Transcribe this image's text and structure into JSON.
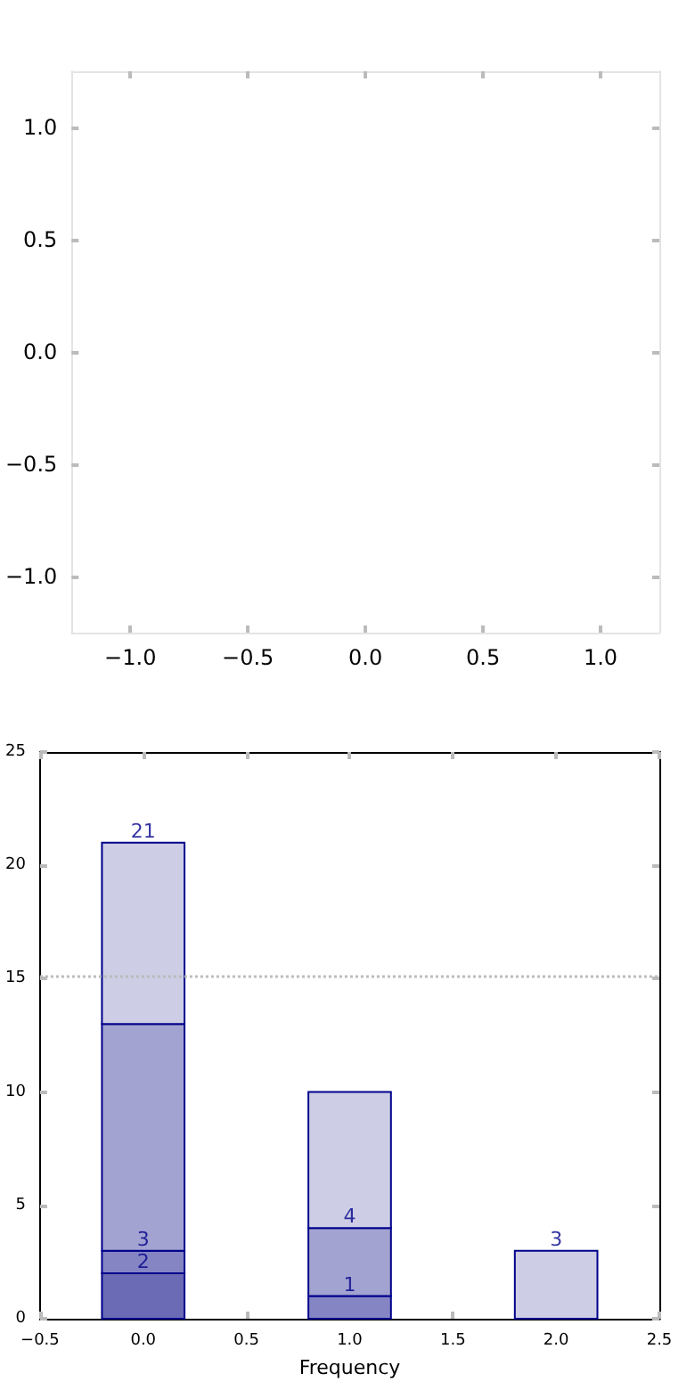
{
  "chart_data": [
    {
      "type": "scatter",
      "xlim": [
        -1.25,
        1.25
      ],
      "ylim": [
        -1.25,
        1.25
      ],
      "xticks": [
        {
          "value": -1,
          "label": "−1.0"
        },
        {
          "value": -0.5,
          "label": "−0.5"
        },
        {
          "value": 0,
          "label": "0.0"
        },
        {
          "value": 0.5,
          "label": "0.5"
        },
        {
          "value": 1,
          "label": "1.0"
        }
      ],
      "yticks": [
        {
          "value": -1,
          "label": "−1.0"
        },
        {
          "value": -0.5,
          "label": "−0.5"
        },
        {
          "value": 0,
          "label": "0.0"
        },
        {
          "value": 0.5,
          "label": "0.5"
        },
        {
          "value": 1,
          "label": "1.0"
        }
      ],
      "grid": false
    },
    {
      "type": "bar",
      "stacked": true,
      "x": [
        0,
        1,
        2
      ],
      "xlabel": "Frequency",
      "series": [
        {
          "color": "#6b6bb5",
          "values": [
            2,
            0,
            0
          ]
        },
        {
          "color": "#8585c4",
          "values": [
            1,
            1,
            0
          ]
        },
        {
          "color": "#a3a3d1",
          "values": [
            10,
            3,
            0
          ]
        },
        {
          "color": "#cdcde5",
          "values": [
            8,
            6,
            3
          ]
        }
      ],
      "annotations": [
        {
          "text": "2",
          "x": 0,
          "y": 2
        },
        {
          "text": "3",
          "x": 0,
          "y": 3
        },
        {
          "text": "21",
          "x": 0,
          "y": 21
        },
        {
          "text": "1",
          "x": 1,
          "y": 1
        },
        {
          "text": "4",
          "x": 1,
          "y": 4
        },
        {
          "text": "3",
          "x": 2,
          "y": 3
        }
      ],
      "xlim": [
        -0.5,
        2.5
      ],
      "ylim": [
        0,
        25
      ],
      "xticks": [
        {
          "value": -0.5,
          "label": "−0.5"
        },
        {
          "value": 0,
          "label": "0.0"
        },
        {
          "value": 0.5,
          "label": "0.5"
        },
        {
          "value": 1,
          "label": "1.0"
        },
        {
          "value": 1.5,
          "label": "1.5"
        },
        {
          "value": 2,
          "label": "2.0"
        },
        {
          "value": 2.5,
          "label": "2.5"
        }
      ],
      "yticks": [
        0,
        5,
        10,
        15,
        20,
        25
      ],
      "ref_lines": [
        {
          "axis": "y",
          "value": 15.1,
          "color": "#bbbbbb",
          "line_style": "dotted"
        }
      ],
      "grid": false
    }
  ]
}
